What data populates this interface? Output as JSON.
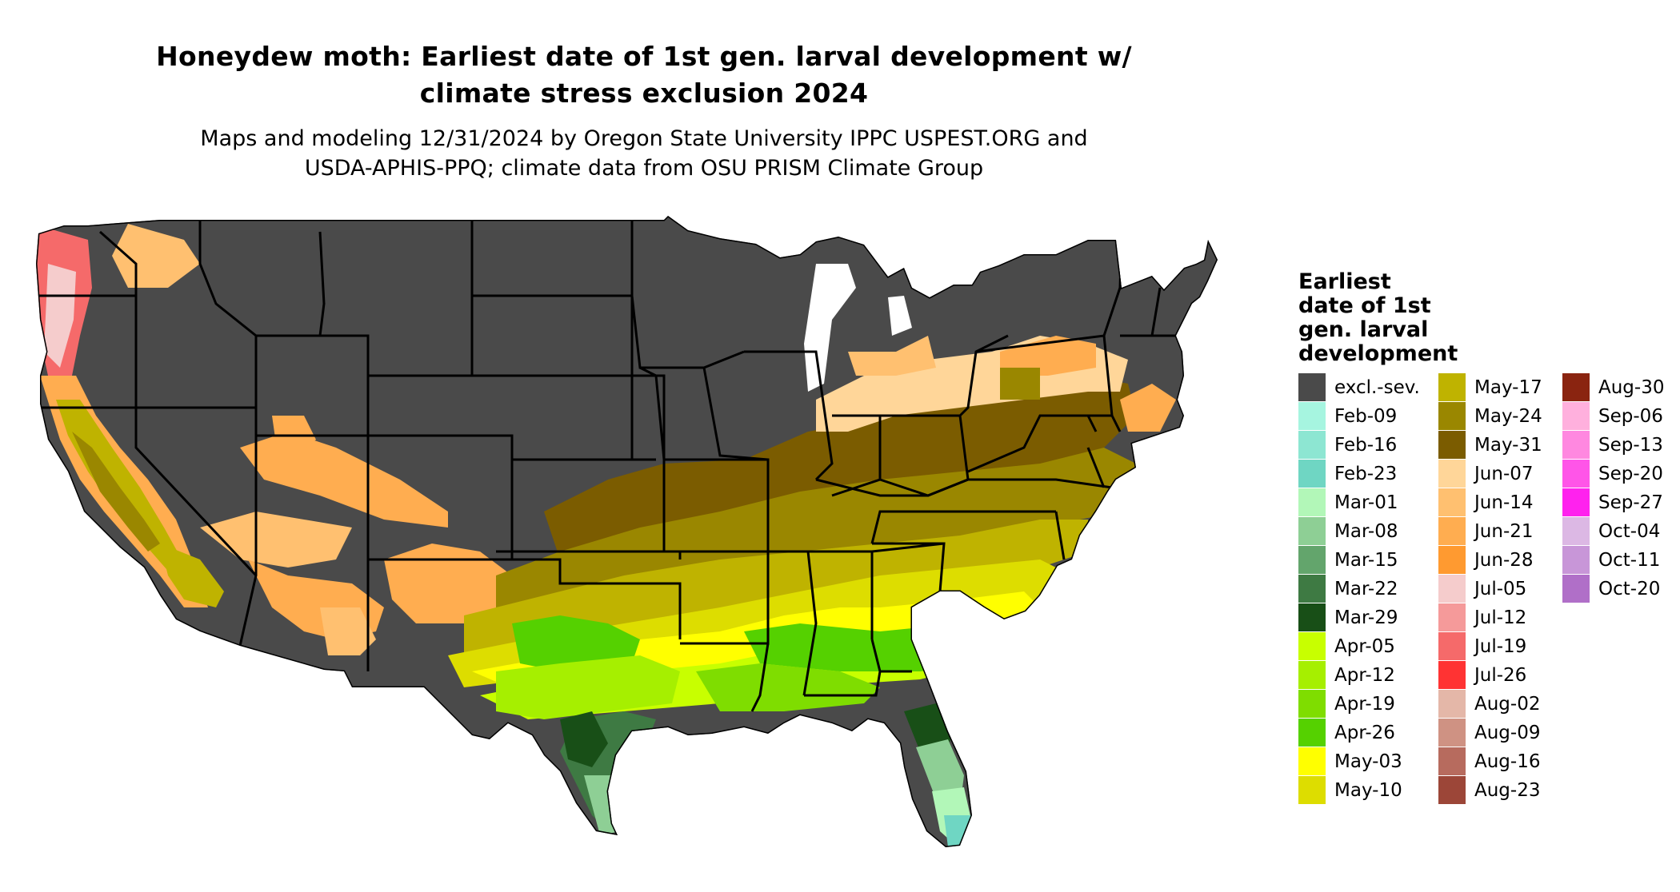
{
  "title": "Honeydew moth: Earliest date of 1st gen. larval development w/\nclimate stress exclusion 2024",
  "subtitle": "Maps and modeling 12/31/2024 by Oregon State University IPPC USPEST.ORG and\nUSDA-APHIS-PPQ; climate data from OSU PRISM Climate Group",
  "legend": {
    "title": "Earliest\ndate of 1st\ngen. larval\ndevelopment",
    "columns": [
      [
        {
          "label": "excl.-sev.",
          "color": "#4a4a4a"
        },
        {
          "label": "Feb-09",
          "color": "#a6f5e0"
        },
        {
          "label": "Feb-16",
          "color": "#8de6d2"
        },
        {
          "label": "Feb-23",
          "color": "#6fd6c3"
        },
        {
          "label": "Mar-01",
          "color": "#b2f7b8"
        },
        {
          "label": "Mar-08",
          "color": "#8ecf95"
        },
        {
          "label": "Mar-15",
          "color": "#63a56c"
        },
        {
          "label": "Mar-22",
          "color": "#3e7a43"
        },
        {
          "label": "Mar-29",
          "color": "#184f17"
        },
        {
          "label": "Apr-05",
          "color": "#c8ff00"
        },
        {
          "label": "Apr-12",
          "color": "#a6ef00"
        },
        {
          "label": "Apr-19",
          "color": "#7fdd00"
        },
        {
          "label": "Apr-26",
          "color": "#55d100"
        },
        {
          "label": "May-03",
          "color": "#ffff00"
        },
        {
          "label": "May-10",
          "color": "#dddd00"
        }
      ],
      [
        {
          "label": "May-17",
          "color": "#bfb300"
        },
        {
          "label": "May-24",
          "color": "#9a8700"
        },
        {
          "label": "May-31",
          "color": "#7b5c00"
        },
        {
          "label": "Jun-07",
          "color": "#ffd699"
        },
        {
          "label": "Jun-14",
          "color": "#ffc070"
        },
        {
          "label": "Jun-21",
          "color": "#ffad50"
        },
        {
          "label": "Jun-28",
          "color": "#ff9a30"
        },
        {
          "label": "Jul-05",
          "color": "#f5cccc"
        },
        {
          "label": "Jul-12",
          "color": "#f59a9a"
        },
        {
          "label": "Jul-19",
          "color": "#f56a6a"
        },
        {
          "label": "Jul-26",
          "color": "#ff3333"
        },
        {
          "label": "Aug-02",
          "color": "#e4b7a8"
        },
        {
          "label": "Aug-09",
          "color": "#cf9283"
        },
        {
          "label": "Aug-16",
          "color": "#b76b5e"
        },
        {
          "label": "Aug-23",
          "color": "#9c4638"
        }
      ],
      [
        {
          "label": "Aug-30",
          "color": "#8a2410"
        },
        {
          "label": "Sep-06",
          "color": "#ffb0dd"
        },
        {
          "label": "Sep-13",
          "color": "#ff88e0"
        },
        {
          "label": "Sep-20",
          "color": "#ff55e8"
        },
        {
          "label": "Sep-27",
          "color": "#ff22ee"
        },
        {
          "label": "Oct-04",
          "color": "#dcb8e4"
        },
        {
          "label": "Oct-11",
          "color": "#c896d8"
        },
        {
          "label": "Oct-20",
          "color": "#b06fc8"
        }
      ]
    ]
  }
}
